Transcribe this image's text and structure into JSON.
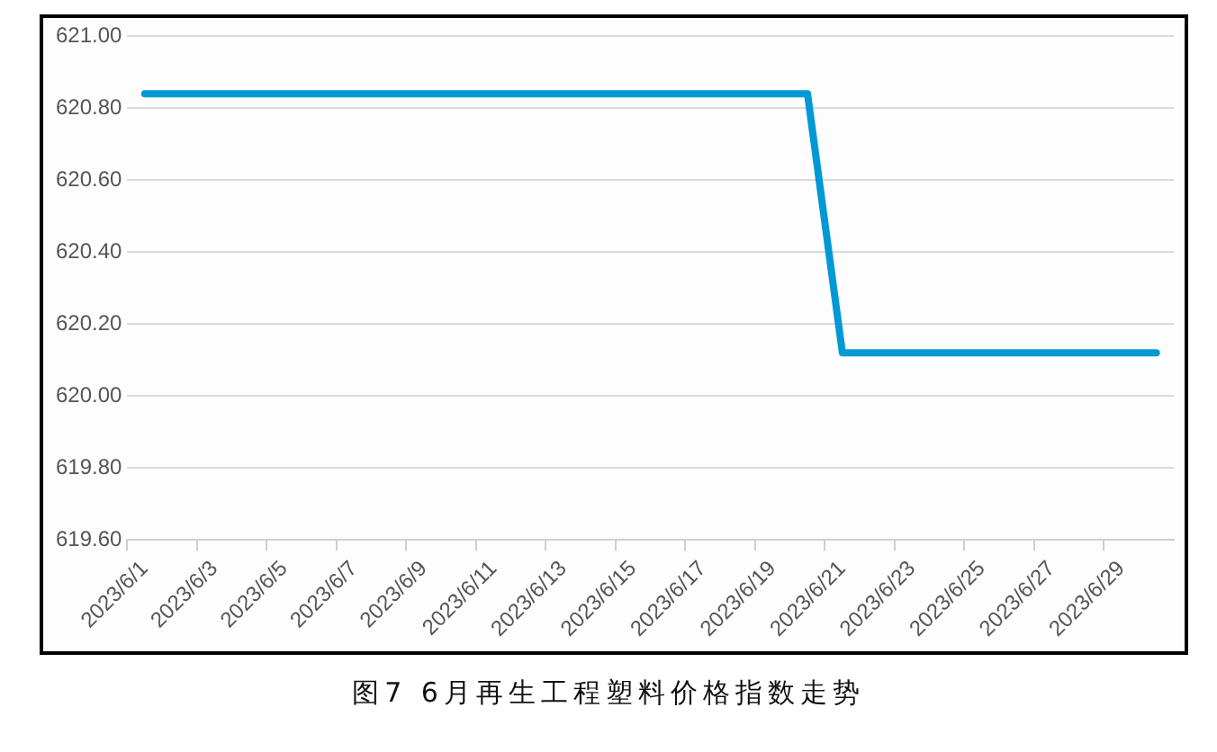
{
  "chart_data": {
    "type": "line",
    "title": "图7 6月再生工程塑料价格指数走势",
    "categories": [
      "2023/6/1",
      null,
      "2023/6/3",
      null,
      "2023/6/5",
      null,
      "2023/6/7",
      null,
      "2023/6/9",
      null,
      "2023/6/11",
      null,
      "2023/6/13",
      null,
      "2023/6/15",
      null,
      "2023/6/17",
      null,
      "2023/6/19",
      null,
      "2023/6/21",
      null,
      "2023/6/23",
      null,
      "2023/6/25",
      null,
      "2023/6/27",
      null,
      "2023/6/29",
      null
    ],
    "series": [
      {
        "color": "#0099d6",
        "values": [
          620.84,
          620.84,
          620.84,
          620.84,
          620.84,
          620.84,
          620.84,
          620.84,
          620.84,
          620.84,
          620.84,
          620.84,
          620.84,
          620.84,
          620.84,
          620.84,
          620.84,
          620.84,
          620.84,
          620.84,
          620.12,
          620.12,
          620.12,
          620.12,
          620.12,
          620.12,
          620.12,
          620.12,
          620.12,
          620.12
        ]
      }
    ],
    "ylim": [
      619.6,
      621
    ],
    "yticks": [
      {
        "value": 619.6,
        "label": "619.60"
      },
      {
        "value": 619.8,
        "label": "619.80"
      },
      {
        "value": 620,
        "label": "620.00"
      },
      {
        "value": 620.2,
        "label": "620.20"
      },
      {
        "value": 620.4,
        "label": "620.40"
      },
      {
        "value": 620.6,
        "label": "620.60"
      },
      {
        "value": 620.8,
        "label": "620.80"
      },
      {
        "value": 621,
        "label": "621.00"
      }
    ],
    "grid": "y",
    "legend": false,
    "marker": "none",
    "line_style": "solid"
  }
}
